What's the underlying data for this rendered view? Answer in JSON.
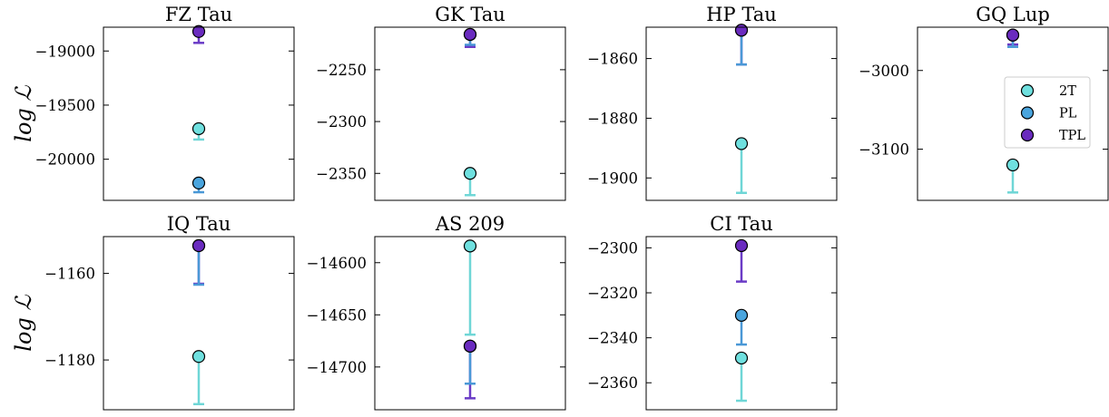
{
  "chart_data": [
    {
      "type": "scatter",
      "title": "FZ Tau",
      "ylabel": "log ℒ",
      "ylim": [
        -20380,
        -18780
      ],
      "yticks": [
        -19000,
        -19500,
        -20000
      ],
      "ytick_labels": [
        "−19000",
        "−19500",
        "−20000"
      ],
      "series": [
        {
          "name": "2T",
          "y": -19718,
          "err_low": 100,
          "err_high": 0
        },
        {
          "name": "PL",
          "y": -20220,
          "err_low": 85,
          "err_high": 0
        },
        {
          "name": "TPL",
          "y": -18820,
          "err_low": 105,
          "err_high": 0
        }
      ]
    },
    {
      "type": "scatter",
      "title": "GK Tau",
      "ylabel": "",
      "ylim": [
        -2376,
        -2209
      ],
      "yticks": [
        -2250,
        -2300,
        -2350
      ],
      "ytick_labels": [
        "−2250",
        "−2300",
        "−2350"
      ],
      "series": [
        {
          "name": "2T",
          "y": -2350,
          "err_low": 21,
          "err_high": 0
        },
        {
          "name": "PL",
          "y": -2216,
          "err_low": 10,
          "err_high": 0
        },
        {
          "name": "TPL",
          "y": -2216,
          "err_low": 12,
          "err_high": 0
        }
      ]
    },
    {
      "type": "scatter",
      "title": "HP Tau",
      "ylabel": "",
      "ylim": [
        -1907.5,
        -1849.5
      ],
      "yticks": [
        -1860,
        -1880,
        -1900
      ],
      "ytick_labels": [
        "−1860",
        "−1880",
        "−1900"
      ],
      "series": [
        {
          "name": "2T",
          "y": -1888.5,
          "err_low": 16.5,
          "err_high": 0
        },
        {
          "name": "PL",
          "y": -1850.5,
          "err_low": 11.5,
          "err_high": 0
        },
        {
          "name": "TPL",
          "y": -1850.5,
          "err_low": 11.5,
          "err_high": 0
        }
      ]
    },
    {
      "type": "scatter",
      "title": "GQ Lup",
      "ylabel": "",
      "ylim": [
        -3165,
        -2945
      ],
      "yticks": [
        -3000,
        -3100
      ],
      "ytick_labels": [
        "−3000",
        "−3100"
      ],
      "series": [
        {
          "name": "2T",
          "y": -3120,
          "err_low": 35,
          "err_high": 0
        },
        {
          "name": "PL",
          "y": -2955,
          "err_low": 15,
          "err_high": 0
        },
        {
          "name": "TPL",
          "y": -2955,
          "err_low": 12,
          "err_high": 0
        }
      ]
    },
    {
      "type": "scatter",
      "title": "IQ Tau",
      "ylabel": "log ℒ",
      "ylim": [
        -1191.5,
        -1151.5
      ],
      "yticks": [
        -1160,
        -1180
      ],
      "ytick_labels": [
        "−1160",
        "−1180"
      ],
      "series": [
        {
          "name": "2T",
          "y": -1179.2,
          "err_low": 11,
          "err_high": 0
        },
        {
          "name": "PL",
          "y": -1153.6,
          "err_low": 9,
          "err_high": 0
        },
        {
          "name": "TPL",
          "y": -1153.6,
          "err_low": 8.8,
          "err_high": 0
        }
      ]
    },
    {
      "type": "scatter",
      "title": "AS 209",
      "ylabel": "",
      "ylim": [
        -14741,
        -14575
      ],
      "yticks": [
        -14600,
        -14650,
        -14700
      ],
      "ytick_labels": [
        "−14600",
        "−14650",
        "−14700"
      ],
      "series": [
        {
          "name": "2T",
          "y": -14584,
          "err_low": 85,
          "err_high": 0
        },
        {
          "name": "PL",
          "y": -14680,
          "err_low": 36,
          "err_high": 0
        },
        {
          "name": "TPL",
          "y": -14680,
          "err_low": 50,
          "err_high": 0
        }
      ]
    },
    {
      "type": "scatter",
      "title": "CI Tau",
      "ylabel": "",
      "ylim": [
        -2372,
        -2295
      ],
      "yticks": [
        -2300,
        -2320,
        -2340,
        -2360
      ],
      "ytick_labels": [
        "−2300",
        "−2320",
        "−2340",
        "−2360"
      ],
      "series": [
        {
          "name": "2T",
          "y": -2349,
          "err_low": 19,
          "err_high": 0
        },
        {
          "name": "PL",
          "y": -2330,
          "err_low": 13,
          "err_high": 0
        },
        {
          "name": "TPL",
          "y": -2299,
          "err_low": 16,
          "err_high": 0
        }
      ]
    }
  ],
  "legend": {
    "placement": "center-right of GQ Lup panel",
    "items": [
      {
        "label": "2T",
        "color": "#6fe0df"
      },
      {
        "label": "PL",
        "color": "#4aa5de"
      },
      {
        "label": "TPL",
        "color": "#6a2bbf"
      }
    ]
  },
  "colors": {
    "2T": "#6fe0df",
    "PL": "#4aa5de",
    "TPL": "#6a2bbf",
    "2T_err": "#6fd6d6",
    "PL_err": "#4a98d6",
    "TPL_err": "#6a3bc6"
  },
  "style": {
    "grid": false,
    "tick_direction": "in",
    "ticks_left_right": true
  }
}
